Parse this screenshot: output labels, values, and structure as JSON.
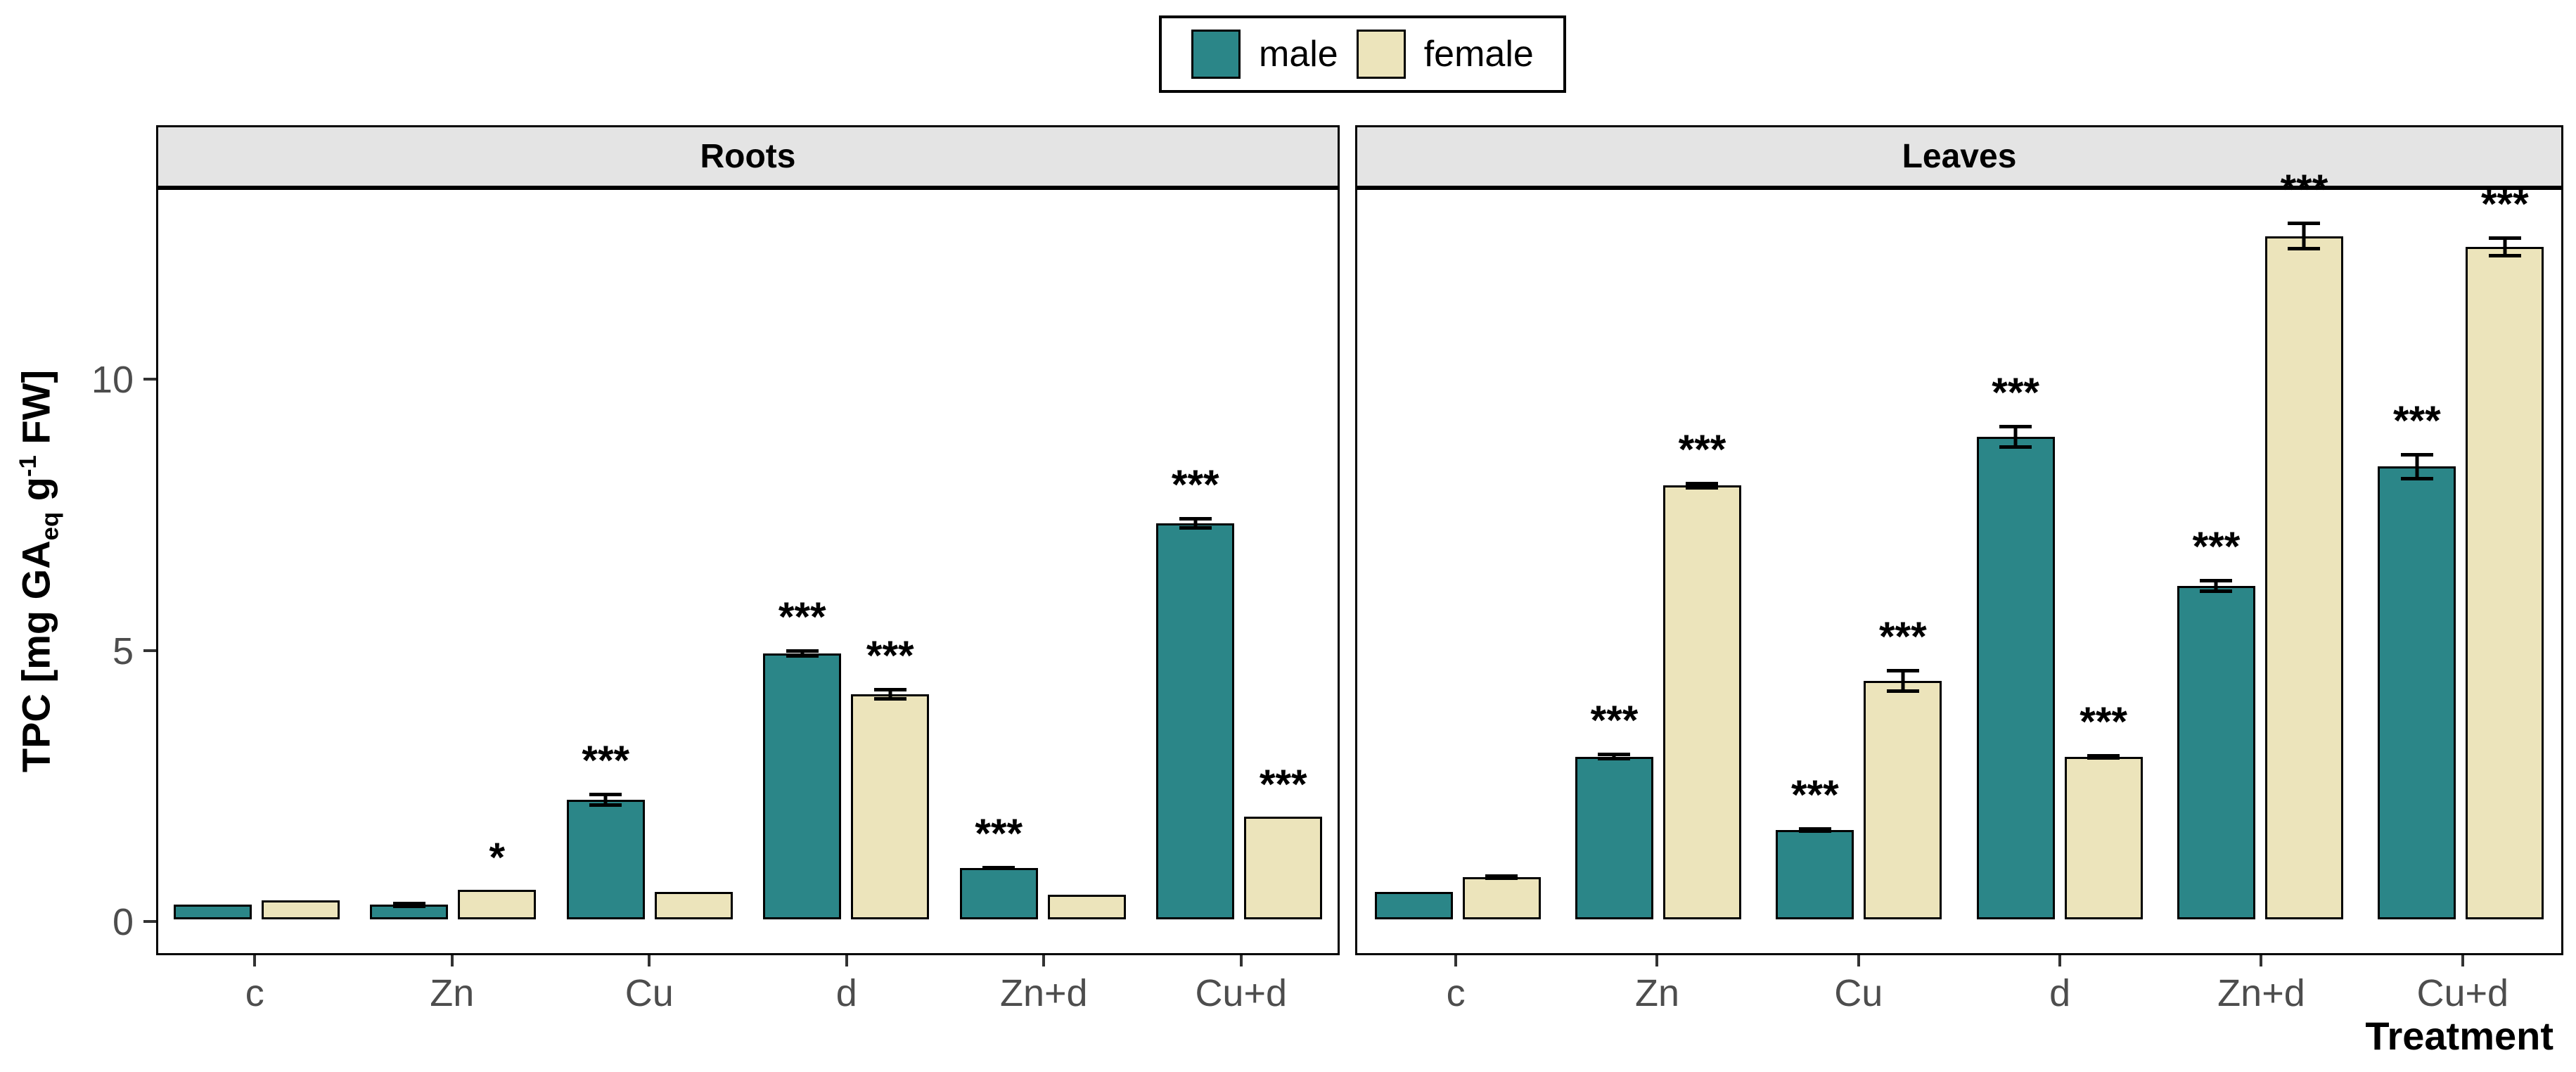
{
  "chart_data": {
    "type": "bar",
    "title": "",
    "xlabel": "Treatment",
    "ylabel_parts": {
      "pre": "TPC [mg GA",
      "sub": "eq",
      "mid": " g",
      "sup": "-1",
      "post": " FW]"
    },
    "yticks": [
      0,
      5,
      10
    ],
    "ylim": [
      0,
      13.5
    ],
    "grid": "off",
    "legend_position": "top-center",
    "categories": [
      "c",
      "Zn",
      "Cu",
      "d",
      "Zn+d",
      "Cu+d"
    ],
    "legend": [
      {
        "label": "male",
        "color": "#2b8688"
      },
      {
        "label": "female",
        "color": "#ece4bb"
      }
    ],
    "colors": {
      "male": "#2b8688",
      "female": "#ece4bb",
      "strip_background": "#e4e4e4",
      "axis_text": "#4d4d4d",
      "border": "#000000"
    },
    "facets": [
      {
        "title": "Roots",
        "series": [
          {
            "name": "male",
            "values": [
              0.27,
              0.27,
              2.2,
              4.9,
              0.95,
              7.3
            ],
            "errors": [
              0,
              0.06,
              0.13,
              0.08,
              0.04,
              0.12
            ],
            "significance": [
              "",
              "",
              "***",
              "***",
              "***",
              "***"
            ]
          },
          {
            "name": "female",
            "values": [
              0.35,
              0.55,
              0.5,
              4.15,
              0.45,
              1.9
            ],
            "errors": [
              0,
              0,
              0,
              0.12,
              0,
              0
            ],
            "significance": [
              "",
              "*",
              "",
              "***",
              "",
              "***"
            ]
          }
        ]
      },
      {
        "title": "Leaves",
        "series": [
          {
            "name": "male",
            "values": [
              0.5,
              3.0,
              1.65,
              8.9,
              6.15,
              8.35
            ],
            "errors": [
              0,
              0.07,
              0.05,
              0.22,
              0.13,
              0.25
            ],
            "significance": [
              "",
              "***",
              "***",
              "***",
              "***",
              "***"
            ]
          },
          {
            "name": "female",
            "values": [
              0.78,
              8.0,
              4.4,
              3.0,
              12.6,
              12.4
            ],
            "errors": [
              0.05,
              0.07,
              0.22,
              0.05,
              0.27,
              0.2
            ],
            "significance": [
              "",
              "***",
              "***",
              "***",
              "***",
              "***"
            ]
          }
        ]
      }
    ]
  }
}
